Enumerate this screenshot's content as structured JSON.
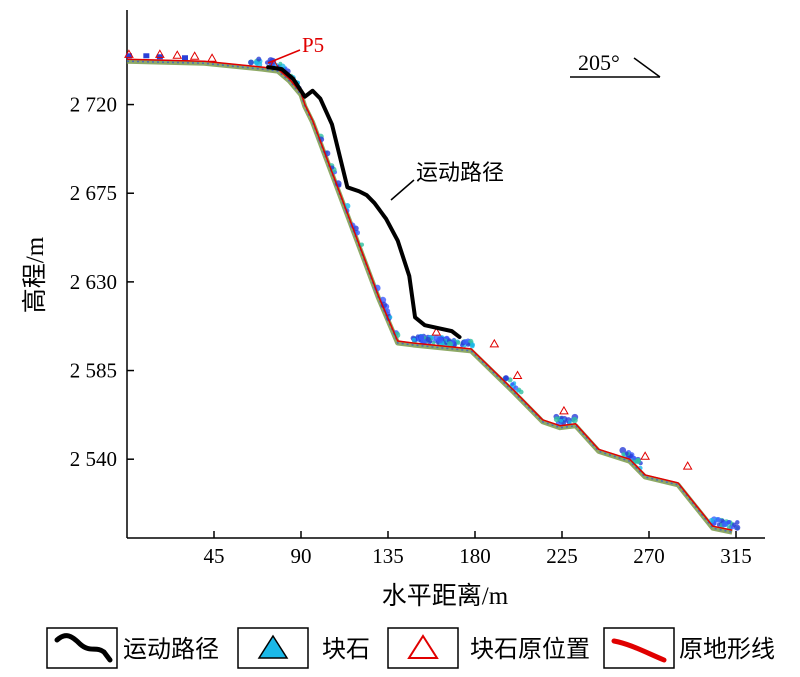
{
  "chart_data": {
    "type": "line",
    "title": "",
    "xlabel": "水平距离/m",
    "ylabel": "高程/m",
    "xlim": [
      0,
      330
    ],
    "ylim": [
      2500,
      2768
    ],
    "x_ticks": [
      45,
      90,
      135,
      180,
      225,
      270,
      315
    ],
    "x_tick_labels": [
      "45",
      "90",
      "135",
      "180",
      "225",
      "270",
      "315"
    ],
    "y_ticks": [
      2540,
      2585,
      2630,
      2675,
      2720
    ],
    "y_tick_labels": [
      "2 540",
      "2 585",
      "2 630",
      "2 675",
      "2 720"
    ],
    "grid": false,
    "legend_position": "bottom",
    "legend": [
      {
        "label": "运动路径",
        "symbol": "black-curve"
      },
      {
        "label": "块石",
        "symbol": "blue-triangle"
      },
      {
        "label": "块石原位置",
        "symbol": "red-triangle"
      },
      {
        "label": "原地形线",
        "symbol": "red-line"
      }
    ],
    "series": [
      {
        "name": "原地形线",
        "color": "#e00000",
        "x": [
          0,
          40,
          70,
          78,
          84,
          90,
          92,
          96,
          130,
          140,
          148,
          178,
          200,
          215,
          224,
          232,
          244,
          260,
          268,
          285,
          303,
          313
        ],
        "y": [
          2743,
          2742,
          2739,
          2738,
          2733,
          2726,
          2720,
          2712,
          2623,
          2600,
          2599,
          2596,
          2575,
          2560,
          2557,
          2558,
          2545,
          2540,
          2532,
          2528,
          2506,
          2504
        ]
      },
      {
        "name": "运动路径",
        "color": "#000000",
        "x": [
          73,
          80,
          86,
          92,
          96,
          100,
          106,
          114,
          120,
          124,
          128,
          134,
          140,
          146,
          149,
          154,
          168,
          172
        ],
        "y": [
          2739,
          2738,
          2733,
          2724,
          2727,
          2723,
          2710,
          2678,
          2676,
          2674,
          2670,
          2662,
          2651,
          2633,
          2612,
          2608,
          2605,
          2602
        ]
      }
    ],
    "annotations": [
      {
        "text": "P5",
        "x": 76,
        "y": 2739,
        "color": "#e00000"
      },
      {
        "text": "运动路径",
        "x": 140,
        "y": 2662
      },
      {
        "text": "205°"
      }
    ]
  }
}
